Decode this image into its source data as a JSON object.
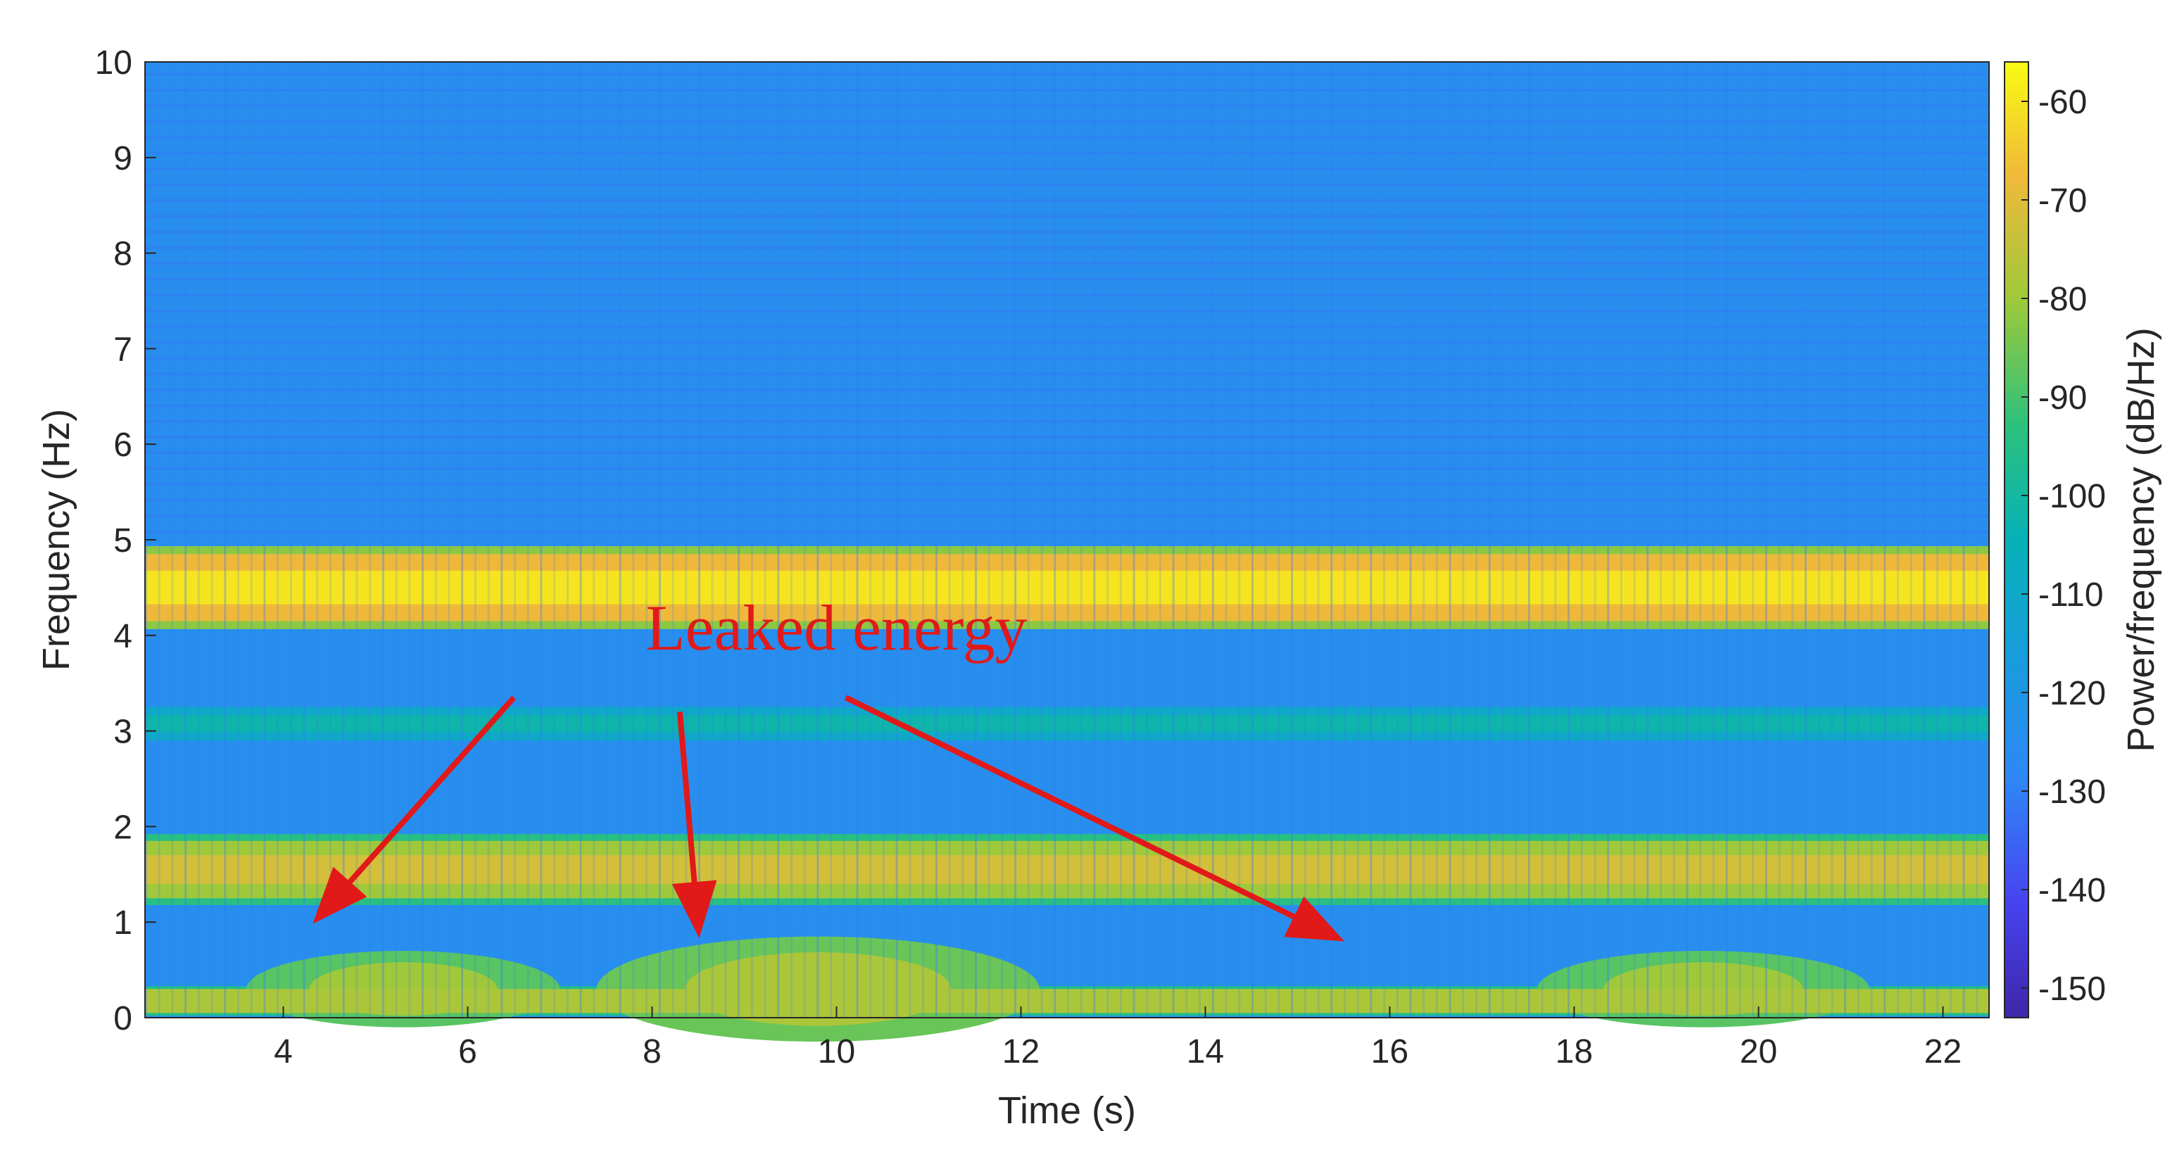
{
  "chart_data": {
    "type": "heatmap",
    "xlabel": "Time (s)",
    "ylabel": "Frequency (Hz)",
    "colorbar_label": "Power/frequency (dB/Hz)",
    "xlim": [
      2.5,
      22.5
    ],
    "ylim": [
      0,
      10
    ],
    "clim": [
      -153,
      -56
    ],
    "x_ticks": [
      4,
      6,
      8,
      10,
      12,
      14,
      16,
      18,
      20,
      22
    ],
    "y_ticks": [
      0,
      1,
      2,
      3,
      4,
      5,
      6,
      7,
      8,
      9,
      10
    ],
    "colorbar_ticks": [
      -60,
      -70,
      -80,
      -90,
      -100,
      -110,
      -120,
      -130,
      -140,
      -150
    ],
    "colormap": "parula",
    "background_level_db": -125,
    "bands": [
      {
        "f_low": 4.15,
        "f_high": 4.85,
        "level_db": -60
      },
      {
        "f_low": 1.25,
        "f_high": 1.85,
        "level_db": -72
      },
      {
        "f_low": 0.05,
        "f_high": 0.3,
        "level_db": -74
      },
      {
        "f_low": 2.9,
        "f_high": 3.25,
        "level_db": -102
      }
    ],
    "leak_regions": [
      {
        "t_center": 5.3,
        "t_width": 3.4,
        "f_top": 0.7,
        "level_db": -88
      },
      {
        "t_center": 9.8,
        "t_width": 4.8,
        "f_top": 0.85,
        "level_db": -86
      },
      {
        "t_center": 19.4,
        "t_width": 3.6,
        "f_top": 0.7,
        "level_db": -88
      }
    ],
    "annotations": [
      {
        "text": "Leaked energy",
        "x": 10.0,
        "y": 3.85,
        "arrows": [
          {
            "from": [
              6.5,
              3.35
            ],
            "to": [
              4.4,
              1.07
            ]
          },
          {
            "from": [
              8.3,
              3.2
            ],
            "to": [
              8.5,
              0.95
            ]
          },
          {
            "from": [
              10.1,
              3.35
            ],
            "to": [
              15.4,
              0.85
            ]
          }
        ]
      }
    ]
  }
}
